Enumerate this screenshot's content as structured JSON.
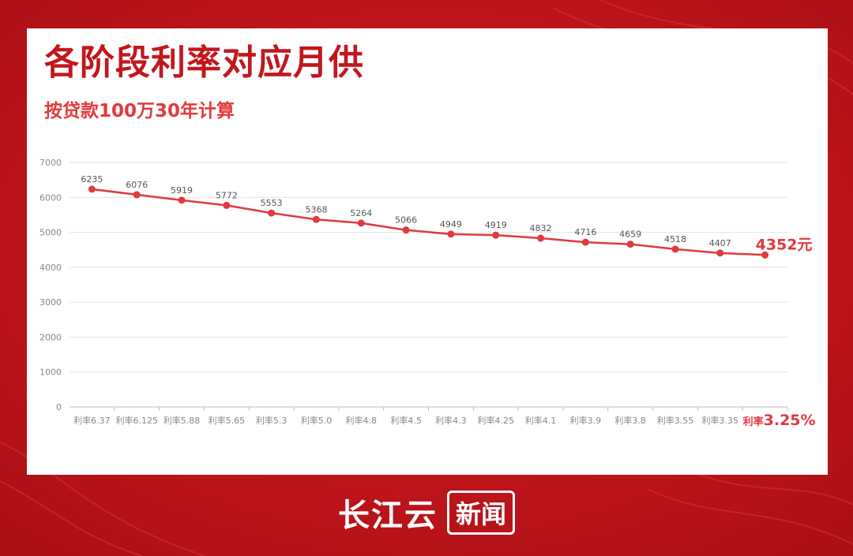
{
  "colors": {
    "background": "#c4141b",
    "card": "#ffffff",
    "title": "#c3161c",
    "subtitle": "#e23a3a",
    "line": "#e0393e",
    "axis_text": "#888888",
    "grid": "#e2e2e2"
  },
  "header": {
    "title": "各阶段利率对应月供",
    "subtitle": "按贷款100万30年计算"
  },
  "chart_data": {
    "type": "line",
    "categories": [
      "利率6.37",
      "利率6.125",
      "利率5.88",
      "利率5.65",
      "利率5.3",
      "利率5.0",
      "利率4.8",
      "利率4.5",
      "利率4.3",
      "利率4.25",
      "利率4.1",
      "利率3.9",
      "利率3.8",
      "利率3.55",
      "利率3.35",
      "利率3.25%"
    ],
    "values": [
      6235,
      6076,
      5919,
      5772,
      5553,
      5368,
      5264,
      5066,
      4949,
      4919,
      4832,
      4716,
      4659,
      4518,
      4407,
      4352
    ],
    "data_labels": [
      "6235",
      "6076",
      "5919",
      "5772",
      "5553",
      "5368",
      "5264",
      "5066",
      "4949",
      "4919",
      "4832",
      "4716",
      "4659",
      "4518",
      "4407",
      "4352元"
    ],
    "ylim": [
      0,
      7000
    ],
    "yticks": [
      0,
      1000,
      2000,
      3000,
      4000,
      5000,
      6000,
      7000
    ],
    "grid": true,
    "highlight_last": true
  },
  "footer": {
    "brand": "长江云",
    "brand_box": "新闻"
  }
}
